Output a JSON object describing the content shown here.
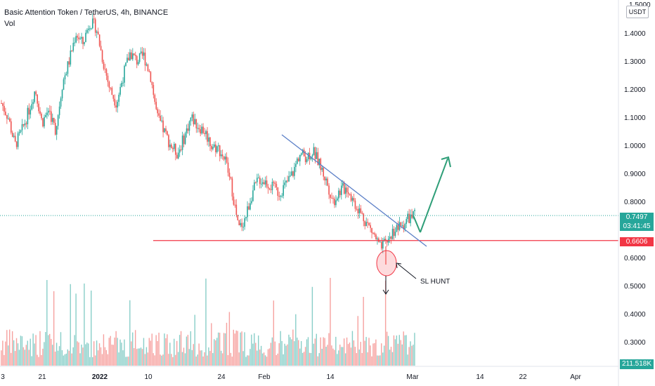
{
  "header": {
    "title": "Basic Attention Token / TetherUS, 4h, BINANCE",
    "vol_label": "Vol"
  },
  "axis": {
    "currency_button": "USDT",
    "price_ticks": [
      "1.4000",
      "1.3000",
      "1.2000",
      "1.1000",
      "1.0000",
      "0.9000",
      "0.8000",
      "0.6000",
      "0.5000",
      "0.4000",
      "0.3000"
    ],
    "top_tick": "1.5000",
    "time_ticks": [
      "3",
      "21",
      "2022",
      "10",
      "24",
      "Feb",
      "14",
      "Mar",
      "14",
      "22",
      "Apr"
    ]
  },
  "badges": {
    "last_price": "0.7497",
    "countdown": "03:41:45",
    "support_price": "0.6606",
    "volume": "211.518K"
  },
  "annotations": {
    "sl_hunt": "SL HUNT"
  },
  "colors": {
    "bull": "#26a69a",
    "bear": "#ef5350",
    "trendline": "#5b7fc7",
    "support": "#f23645",
    "arrow": "#2e9e78",
    "price_badge": "#26a69a",
    "support_badge": "#f23645"
  },
  "chart_data": {
    "type": "candlestick",
    "series_sketch_close": [
      1.15,
      1.1,
      1.0,
      1.05,
      1.12,
      1.2,
      1.08,
      1.13,
      1.05,
      1.22,
      1.3,
      1.4,
      1.36,
      1.44,
      1.42,
      1.3,
      1.2,
      1.15,
      1.25,
      1.33,
      1.3,
      1.32,
      1.25,
      1.1,
      1.05,
      1.0,
      0.97,
      1.03,
      1.1,
      1.07,
      1.05,
      1.0,
      0.99,
      0.95,
      0.85,
      0.7,
      0.74,
      0.83,
      0.88,
      0.87,
      0.85,
      0.83,
      0.86,
      0.9,
      0.97,
      0.96,
      0.98,
      0.93,
      0.87,
      0.8,
      0.84,
      0.85,
      0.8,
      0.76,
      0.72,
      0.68,
      0.63,
      0.66,
      0.7,
      0.71,
      0.74,
      0.75
    ],
    "support_level": 0.6606,
    "last_price": 0.7497
  }
}
